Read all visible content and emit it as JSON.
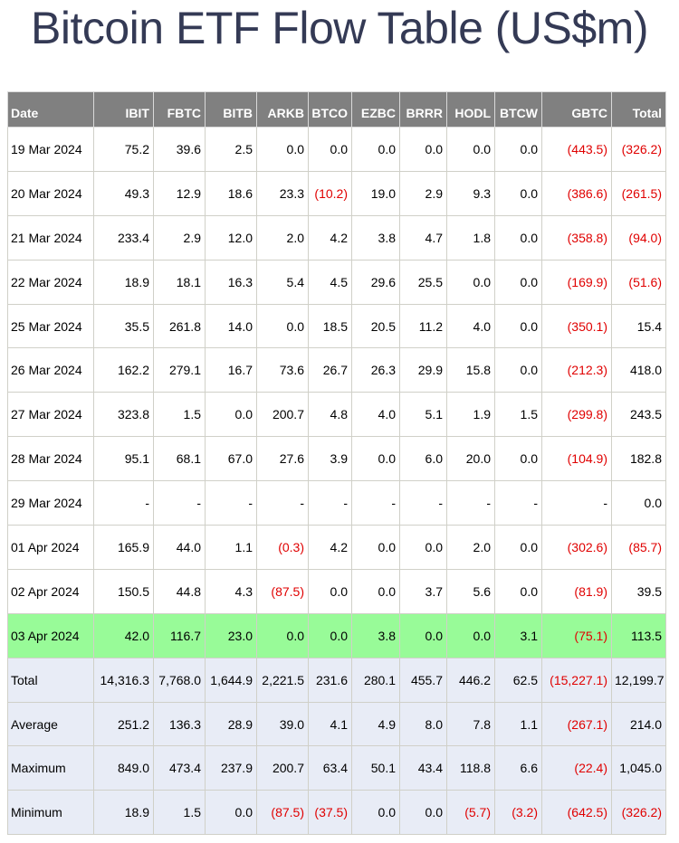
{
  "title": "Bitcoin ETF Flow Table (US$m)",
  "colors": {
    "header_bg": "#808080",
    "highlight_bg": "#98fb98",
    "summary_bg": "#e8ecf6",
    "negative": "#e00000"
  },
  "columns": [
    "Date",
    "IBIT",
    "FBTC",
    "BITB",
    "ARKB",
    "BTCO",
    "EZBC",
    "BRRR",
    "HODL",
    "BTCW",
    "GBTC",
    "Total"
  ],
  "rows": [
    {
      "type": "data",
      "cells": [
        "19 Mar 2024",
        "75.2",
        "39.6",
        "2.5",
        "0.0",
        "0.0",
        "0.0",
        "0.0",
        "0.0",
        "0.0",
        "(443.5)",
        "(326.2)"
      ]
    },
    {
      "type": "data",
      "cells": [
        "20 Mar 2024",
        "49.3",
        "12.9",
        "18.6",
        "23.3",
        "(10.2)",
        "19.0",
        "2.9",
        "9.3",
        "0.0",
        "(386.6)",
        "(261.5)"
      ]
    },
    {
      "type": "data",
      "cells": [
        "21 Mar 2024",
        "233.4",
        "2.9",
        "12.0",
        "2.0",
        "4.2",
        "3.8",
        "4.7",
        "1.8",
        "0.0",
        "(358.8)",
        "(94.0)"
      ]
    },
    {
      "type": "data",
      "cells": [
        "22 Mar 2024",
        "18.9",
        "18.1",
        "16.3",
        "5.4",
        "4.5",
        "29.6",
        "25.5",
        "0.0",
        "0.0",
        "(169.9)",
        "(51.6)"
      ]
    },
    {
      "type": "data",
      "cells": [
        "25 Mar 2024",
        "35.5",
        "261.8",
        "14.0",
        "0.0",
        "18.5",
        "20.5",
        "11.2",
        "4.0",
        "0.0",
        "(350.1)",
        "15.4"
      ]
    },
    {
      "type": "data",
      "cells": [
        "26 Mar 2024",
        "162.2",
        "279.1",
        "16.7",
        "73.6",
        "26.7",
        "26.3",
        "29.9",
        "15.8",
        "0.0",
        "(212.3)",
        "418.0"
      ]
    },
    {
      "type": "data",
      "cells": [
        "27 Mar 2024",
        "323.8",
        "1.5",
        "0.0",
        "200.7",
        "4.8",
        "4.0",
        "5.1",
        "1.9",
        "1.5",
        "(299.8)",
        "243.5"
      ]
    },
    {
      "type": "data",
      "cells": [
        "28 Mar 2024",
        "95.1",
        "68.1",
        "67.0",
        "27.6",
        "3.9",
        "0.0",
        "6.0",
        "20.0",
        "0.0",
        "(104.9)",
        "182.8"
      ]
    },
    {
      "type": "data",
      "cells": [
        "29 Mar 2024",
        "-",
        "-",
        "-",
        "-",
        "-",
        "-",
        "-",
        "-",
        "-",
        "-",
        "0.0"
      ]
    },
    {
      "type": "data",
      "cells": [
        "01 Apr 2024",
        "165.9",
        "44.0",
        "1.1",
        "(0.3)",
        "4.2",
        "0.0",
        "0.0",
        "2.0",
        "0.0",
        "(302.6)",
        "(85.7)"
      ]
    },
    {
      "type": "data",
      "cells": [
        "02 Apr 2024",
        "150.5",
        "44.8",
        "4.3",
        "(87.5)",
        "0.0",
        "0.0",
        "3.7",
        "5.6",
        "0.0",
        "(81.9)",
        "39.5"
      ]
    },
    {
      "type": "highlight",
      "cells": [
        "03 Apr 2024",
        "42.0",
        "116.7",
        "23.0",
        "0.0",
        "0.0",
        "3.8",
        "0.0",
        "0.0",
        "3.1",
        "(75.1)",
        "113.5"
      ]
    },
    {
      "type": "summary",
      "cells": [
        "Total",
        "14,316.3",
        "7,768.0",
        "1,644.9",
        "2,221.5",
        "231.6",
        "280.1",
        "455.7",
        "446.2",
        "62.5",
        "(15,227.1)",
        "12,199.7"
      ]
    },
    {
      "type": "summary",
      "cells": [
        "Average",
        "251.2",
        "136.3",
        "28.9",
        "39.0",
        "4.1",
        "4.9",
        "8.0",
        "7.8",
        "1.1",
        "(267.1)",
        "214.0"
      ]
    },
    {
      "type": "summary",
      "cells": [
        "Maximum",
        "849.0",
        "473.4",
        "237.9",
        "200.7",
        "63.4",
        "50.1",
        "43.4",
        "118.8",
        "6.6",
        "(22.4)",
        "1,045.0"
      ]
    },
    {
      "type": "summary",
      "cells": [
        "Minimum",
        "18.9",
        "1.5",
        "0.0",
        "(87.5)",
        "(37.5)",
        "0.0",
        "0.0",
        "(5.7)",
        "(3.2)",
        "(642.5)",
        "(326.2)"
      ]
    }
  ]
}
